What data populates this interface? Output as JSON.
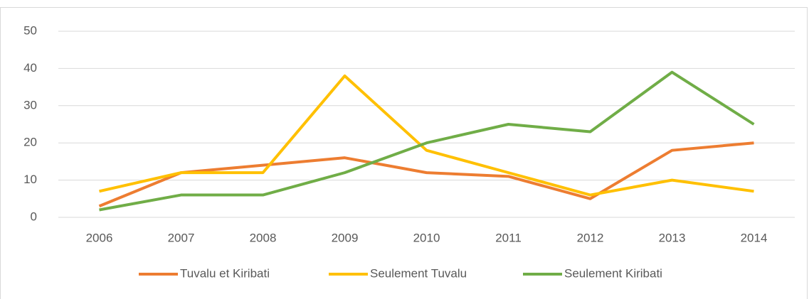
{
  "chart_data": {
    "type": "line",
    "categories": [
      "2006",
      "2007",
      "2008",
      "2009",
      "2010",
      "2011",
      "2012",
      "2013",
      "2014"
    ],
    "series": [
      {
        "name": "Tuvalu et Kiribati",
        "color": "#ed7d31",
        "values": [
          3,
          12,
          14,
          16,
          12,
          11,
          5,
          18,
          20
        ]
      },
      {
        "name": "Seulement Tuvalu",
        "color": "#ffc000",
        "values": [
          7,
          12,
          12,
          38,
          18,
          12,
          6,
          10,
          7
        ]
      },
      {
        "name": "Seulement Kiribati",
        "color": "#70ad47",
        "values": [
          2,
          6,
          6,
          12,
          20,
          25,
          23,
          39,
          25
        ]
      }
    ],
    "ylim": [
      0,
      50
    ],
    "yticks": [
      0,
      10,
      20,
      30,
      40,
      50
    ],
    "grid": true,
    "legend": "bottom"
  }
}
